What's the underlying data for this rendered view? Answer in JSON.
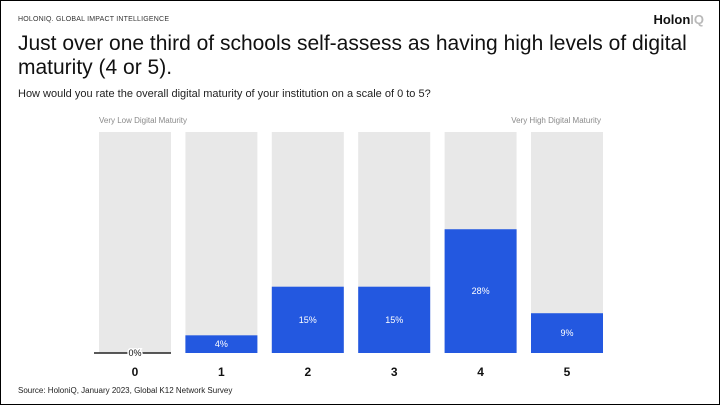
{
  "header": {
    "brand": "HOLONIQ. GLOBAL IMPACT INTELLIGENCE",
    "logo_main": "Holon",
    "logo_accent": "IQ"
  },
  "title": "Just over one third of schools self-assess as having high levels of digital maturity (4 or 5).",
  "question": "How would you rate the overall digital maturity of your institution on a scale of 0 to 5?",
  "source": "Source: HoloniQ, January 2023, Global K12 Network Survey",
  "colors": {
    "bar": "#2358e0",
    "track": "#e8e8e8",
    "axis": "#222222"
  },
  "chart_data": {
    "type": "bar",
    "title": "Just over one third of schools self-assess as having high levels of digital maturity (4 or 5).",
    "xlabel": "",
    "ylabel": "",
    "categories": [
      "0",
      "1",
      "2",
      "3",
      "4",
      "5"
    ],
    "values": [
      0,
      4,
      15,
      15,
      28,
      9
    ],
    "value_labels": [
      "0%",
      "4%",
      "15%",
      "15%",
      "28%",
      "9%"
    ],
    "ylim": [
      0,
      50
    ],
    "low_label": "Very Low Digital Maturity",
    "high_label": "Very High Digital Maturity"
  }
}
